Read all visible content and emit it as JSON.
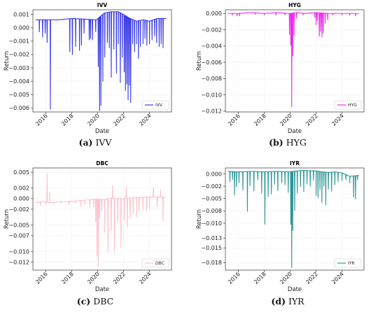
{
  "chart_data": [
    {
      "type": "line",
      "title": "IVV",
      "caption_letter": "(a)",
      "caption_name": "IVV",
      "xlabel": "Date",
      "ylabel": "Return",
      "xlim": [
        2015.0,
        2025.7
      ],
      "ylim": [
        -0.0063,
        0.00135
      ],
      "xticks": [
        2016,
        2018,
        2020,
        2022,
        2024
      ],
      "yticks": [
        0.001,
        0.0,
        -0.001,
        -0.002,
        -0.003,
        -0.004,
        -0.005,
        -0.006
      ],
      "ytick_labels": [
        "0.001",
        "0.000",
        "−0.001",
        "−0.002",
        "−0.003",
        "−0.004",
        "−0.005",
        "−0.006"
      ],
      "legend": "lower right",
      "series": [
        {
          "name": "IVV",
          "color": "#3b3be8",
          "baseline": [
            [
              2015.2,
              0.0006
            ],
            [
              2016.0,
              0.0006
            ],
            [
              2017.0,
              0.0006
            ],
            [
              2018.0,
              0.0007
            ],
            [
              2019.0,
              0.00065
            ],
            [
              2019.9,
              0.0006
            ],
            [
              2020.5,
              0.0011
            ],
            [
              2021.0,
              0.0012
            ],
            [
              2021.6,
              0.0012
            ],
            [
              2022.0,
              0.001
            ],
            [
              2022.5,
              0.0007
            ],
            [
              2023.0,
              0.0005
            ],
            [
              2023.5,
              0.0006
            ],
            [
              2024.0,
              0.0005
            ],
            [
              2024.6,
              0.0007
            ],
            [
              2025.3,
              0.0007
            ]
          ],
          "spikes": [
            [
              2015.5,
              -0.0003
            ],
            [
              2015.75,
              -0.0007
            ],
            [
              2015.95,
              -0.0004
            ],
            [
              2016.1,
              -0.0011
            ],
            [
              2016.35,
              -0.0061
            ],
            [
              2017.85,
              -0.0018
            ],
            [
              2018.05,
              -0.002
            ],
            [
              2018.3,
              -0.0014
            ],
            [
              2018.6,
              -0.0017
            ],
            [
              2018.75,
              -0.0013
            ],
            [
              2018.95,
              -0.0004
            ],
            [
              2019.35,
              -0.0009
            ],
            [
              2019.45,
              -0.0008
            ],
            [
              2019.6,
              -0.0009
            ],
            [
              2019.85,
              -0.0003
            ],
            [
              2020.05,
              -0.0029
            ],
            [
              2020.15,
              -0.0062
            ],
            [
              2020.25,
              -0.0058
            ],
            [
              2020.4,
              -0.004
            ],
            [
              2020.55,
              -0.0022
            ],
            [
              2020.75,
              -0.0011
            ],
            [
              2020.9,
              -0.0015
            ],
            [
              2021.05,
              -0.0037
            ],
            [
              2021.25,
              -0.0016
            ],
            [
              2021.45,
              -0.0034
            ],
            [
              2021.6,
              -0.0012
            ],
            [
              2021.75,
              -0.0041
            ],
            [
              2021.9,
              -0.0022
            ],
            [
              2022.05,
              -0.0033
            ],
            [
              2022.15,
              -0.0047
            ],
            [
              2022.25,
              -0.0042
            ],
            [
              2022.35,
              -0.0054
            ],
            [
              2022.45,
              -0.0043
            ],
            [
              2022.55,
              -0.0056
            ],
            [
              2022.7,
              -0.0012
            ],
            [
              2022.85,
              -0.0018
            ],
            [
              2023.0,
              -0.0012
            ],
            [
              2023.15,
              -0.0023
            ],
            [
              2023.3,
              -0.0014
            ],
            [
              2023.5,
              -0.0012
            ],
            [
              2023.65,
              -0.0008
            ],
            [
              2023.8,
              -0.0013
            ],
            [
              2024.0,
              -0.0012
            ],
            [
              2024.2,
              -0.0009
            ],
            [
              2024.4,
              -0.0006
            ],
            [
              2024.55,
              -0.0011
            ],
            [
              2024.75,
              -0.0014
            ],
            [
              2024.9,
              -0.0012
            ],
            [
              2025.05,
              -0.0015
            ]
          ]
        }
      ]
    },
    {
      "type": "line",
      "title": "HYG",
      "caption_letter": "(b)",
      "caption_name": "HYG",
      "xlabel": "Date",
      "ylabel": "Return",
      "xlim": [
        2015.0,
        2025.7
      ],
      "ylim": [
        -0.0121,
        0.00045
      ],
      "xticks": [
        2016,
        2018,
        2020,
        2022,
        2024
      ],
      "yticks": [
        0.0,
        -0.002,
        -0.004,
        -0.006,
        -0.008,
        -0.01,
        -0.012
      ],
      "ytick_labels": [
        "0.000",
        "−0.002",
        "−0.004",
        "−0.006",
        "−0.008",
        "−0.010",
        "−0.012"
      ],
      "legend": "lower right",
      "series": [
        {
          "name": "HYG",
          "color": "#f02af0",
          "baseline": [
            [
              2015.2,
              0.0
            ],
            [
              2016.0,
              0.0
            ],
            [
              2017.0,
              0.0001
            ],
            [
              2018.0,
              0.0
            ],
            [
              2019.0,
              0.0001
            ],
            [
              2019.9,
              0.0
            ],
            [
              2020.6,
              0.0001
            ],
            [
              2021.0,
              0.0
            ],
            [
              2022.0,
              0.0001
            ],
            [
              2023.0,
              0.0
            ],
            [
              2024.0,
              0.0
            ],
            [
              2025.3,
              0.0
            ]
          ],
          "spikes": [
            [
              2015.55,
              -0.0002
            ],
            [
              2015.9,
              -0.0003
            ],
            [
              2016.1,
              -0.0003
            ],
            [
              2017.3,
              -0.0001
            ],
            [
              2018.0,
              -0.0002
            ],
            [
              2018.9,
              -0.0002
            ],
            [
              2019.6,
              -0.0002
            ],
            [
              2019.95,
              -0.0026
            ],
            [
              2020.05,
              -0.0039
            ],
            [
              2020.12,
              -0.0115
            ],
            [
              2020.2,
              -0.0052
            ],
            [
              2020.3,
              -0.0027
            ],
            [
              2020.5,
              -0.0006
            ],
            [
              2021.0,
              -0.0002
            ],
            [
              2021.9,
              -0.0005
            ],
            [
              2022.0,
              -0.0014
            ],
            [
              2022.1,
              -0.0009
            ],
            [
              2022.25,
              -0.0028
            ],
            [
              2022.35,
              -0.0022
            ],
            [
              2022.45,
              -0.0029
            ],
            [
              2022.55,
              -0.0024
            ],
            [
              2022.7,
              -0.0012
            ],
            [
              2022.9,
              -0.0008
            ],
            [
              2023.3,
              -0.0002
            ],
            [
              2024.0,
              -0.0002
            ],
            [
              2024.6,
              -0.0002
            ],
            [
              2025.05,
              -0.0003
            ]
          ]
        }
      ]
    },
    {
      "type": "line",
      "title": "DBC",
      "caption_letter": "(c)",
      "caption_name": "DBC",
      "xlabel": "Date",
      "ylabel": "Return",
      "xlim": [
        2015.0,
        2025.7
      ],
      "ylim": [
        -0.0135,
        0.0058
      ],
      "xticks": [
        2016,
        2018,
        2020,
        2022,
        2024
      ],
      "yticks": [
        0.005,
        0.002,
        0.0,
        -0.002,
        -0.005,
        -0.007,
        -0.01,
        -0.012
      ],
      "ytick_labels": [
        "0.005",
        "0.002",
        "0.000",
        "−0.002",
        "−0.005",
        "−0.007",
        "−0.010",
        "−0.012"
      ],
      "legend": "lower right",
      "series": [
        {
          "name": "DBC",
          "color": "#ffc0cb",
          "baseline": [
            [
              2015.2,
              -0.0008
            ],
            [
              2015.8,
              -0.0005
            ],
            [
              2016.3,
              -0.0008
            ],
            [
              2017.0,
              -0.0006
            ],
            [
              2018.0,
              -0.0005
            ],
            [
              2019.0,
              -0.0003
            ],
            [
              2019.8,
              -0.0001
            ],
            [
              2020.5,
              -0.0002
            ],
            [
              2021.0,
              0.0001
            ],
            [
              2022.0,
              0.0
            ],
            [
              2023.0,
              0.0002
            ],
            [
              2024.0,
              0.0003
            ],
            [
              2025.3,
              0.0003
            ]
          ],
          "spikes": [
            [
              2015.6,
              -0.0013
            ],
            [
              2016.0,
              -0.0012
            ],
            [
              2016.1,
              0.0047
            ],
            [
              2016.3,
              0.0011
            ],
            [
              2016.6,
              -0.0011
            ],
            [
              2017.2,
              -0.0009
            ],
            [
              2017.8,
              -0.0011
            ],
            [
              2018.3,
              -0.0008
            ],
            [
              2018.7,
              -0.0015
            ],
            [
              2019.0,
              -0.0011
            ],
            [
              2019.4,
              -0.0018
            ],
            [
              2019.7,
              -0.0016
            ],
            [
              2019.85,
              -0.0045
            ],
            [
              2019.95,
              -0.0108
            ],
            [
              2020.05,
              -0.0128
            ],
            [
              2020.15,
              -0.0037
            ],
            [
              2020.3,
              -0.0024
            ],
            [
              2020.55,
              -0.0064
            ],
            [
              2020.8,
              -0.0101
            ],
            [
              2021.05,
              -0.0061
            ],
            [
              2021.15,
              0.0024
            ],
            [
              2021.3,
              -0.0099
            ],
            [
              2021.55,
              -0.0046
            ],
            [
              2021.8,
              -0.0092
            ],
            [
              2022.05,
              -0.0041
            ],
            [
              2022.2,
              0.0022
            ],
            [
              2022.3,
              -0.0054
            ],
            [
              2022.5,
              -0.0038
            ],
            [
              2022.75,
              -0.0028
            ],
            [
              2023.0,
              -0.0035
            ],
            [
              2023.2,
              -0.0023
            ],
            [
              2023.5,
              -0.0021
            ],
            [
              2023.8,
              -0.0024
            ],
            [
              2024.0,
              -0.0018
            ],
            [
              2024.3,
              0.0021
            ],
            [
              2024.6,
              -0.0015
            ],
            [
              2024.85,
              0.0017
            ],
            [
              2025.05,
              -0.0043
            ]
          ]
        }
      ]
    },
    {
      "type": "line",
      "title": "IYR",
      "caption_letter": "(d)",
      "caption_name": "IYR",
      "xlabel": "Date",
      "ylabel": "Return",
      "xlim": [
        2015.0,
        2025.7
      ],
      "ylim": [
        -0.0195,
        0.0012
      ],
      "xticks": [
        2016,
        2018,
        2020,
        2022,
        2024
      ],
      "yticks": [
        0.0,
        -0.0025,
        -0.005,
        -0.0075,
        -0.01,
        -0.013,
        -0.015,
        -0.018
      ],
      "ytick_labels": [
        "0.000",
        "−0.002",
        "−0.005",
        "−0.008",
        "−0.010",
        "−0.013",
        "−0.015",
        "−0.018"
      ],
      "legend": "lower right",
      "series": [
        {
          "name": "IYR",
          "color": "#2e9597",
          "baseline": [
            [
              2015.2,
              0.0005
            ],
            [
              2016.0,
              0.0004
            ],
            [
              2017.0,
              0.0005
            ],
            [
              2018.0,
              0.0004
            ],
            [
              2019.0,
              0.0005
            ],
            [
              2019.9,
              0.0004
            ],
            [
              2020.5,
              0.0006
            ],
            [
              2021.0,
              0.0007
            ],
            [
              2022.0,
              0.0006
            ],
            [
              2022.5,
              0.0004
            ],
            [
              2023.0,
              0.0003
            ],
            [
              2023.5,
              0.0004
            ],
            [
              2024.0,
              0.0002
            ],
            [
              2024.6,
              -0.0005
            ],
            [
              2025.3,
              -0.0003
            ]
          ],
          "spikes": [
            [
              2015.35,
              -0.0016
            ],
            [
              2015.55,
              -0.0012
            ],
            [
              2015.7,
              -0.0043
            ],
            [
              2015.85,
              -0.0026
            ],
            [
              2016.05,
              -0.0018
            ],
            [
              2016.35,
              -0.0033
            ],
            [
              2016.7,
              -0.0076
            ],
            [
              2016.9,
              -0.0024
            ],
            [
              2017.2,
              -0.0035
            ],
            [
              2017.5,
              -0.0012
            ],
            [
              2017.8,
              -0.0039
            ],
            [
              2018.05,
              -0.0102
            ],
            [
              2018.3,
              -0.0046
            ],
            [
              2018.55,
              -0.0041
            ],
            [
              2018.8,
              -0.0021
            ],
            [
              2019.05,
              -0.0034
            ],
            [
              2019.35,
              -0.0018
            ],
            [
              2019.6,
              -0.0022
            ],
            [
              2019.85,
              -0.0038
            ],
            [
              2020.05,
              -0.0102
            ],
            [
              2020.12,
              -0.019
            ],
            [
              2020.2,
              -0.0115
            ],
            [
              2020.35,
              -0.0074
            ],
            [
              2020.55,
              -0.0039
            ],
            [
              2020.8,
              -0.0026
            ],
            [
              2021.05,
              -0.0036
            ],
            [
              2021.3,
              -0.0021
            ],
            [
              2021.55,
              -0.0025
            ],
            [
              2021.8,
              -0.0013
            ],
            [
              2022.0,
              -0.0044
            ],
            [
              2022.15,
              -0.0048
            ],
            [
              2022.3,
              -0.0032
            ],
            [
              2022.45,
              -0.0058
            ],
            [
              2022.6,
              -0.0024
            ],
            [
              2022.75,
              -0.0063
            ],
            [
              2022.95,
              -0.0031
            ],
            [
              2023.2,
              -0.0035
            ],
            [
              2023.45,
              -0.0022
            ],
            [
              2023.7,
              -0.0016
            ],
            [
              2024.0,
              -0.0014
            ],
            [
              2024.3,
              -0.0012
            ],
            [
              2024.6,
              -0.0018
            ],
            [
              2024.9,
              -0.0047
            ],
            [
              2025.05,
              -0.0051
            ],
            [
              2025.2,
              -0.0012
            ]
          ]
        }
      ]
    }
  ]
}
